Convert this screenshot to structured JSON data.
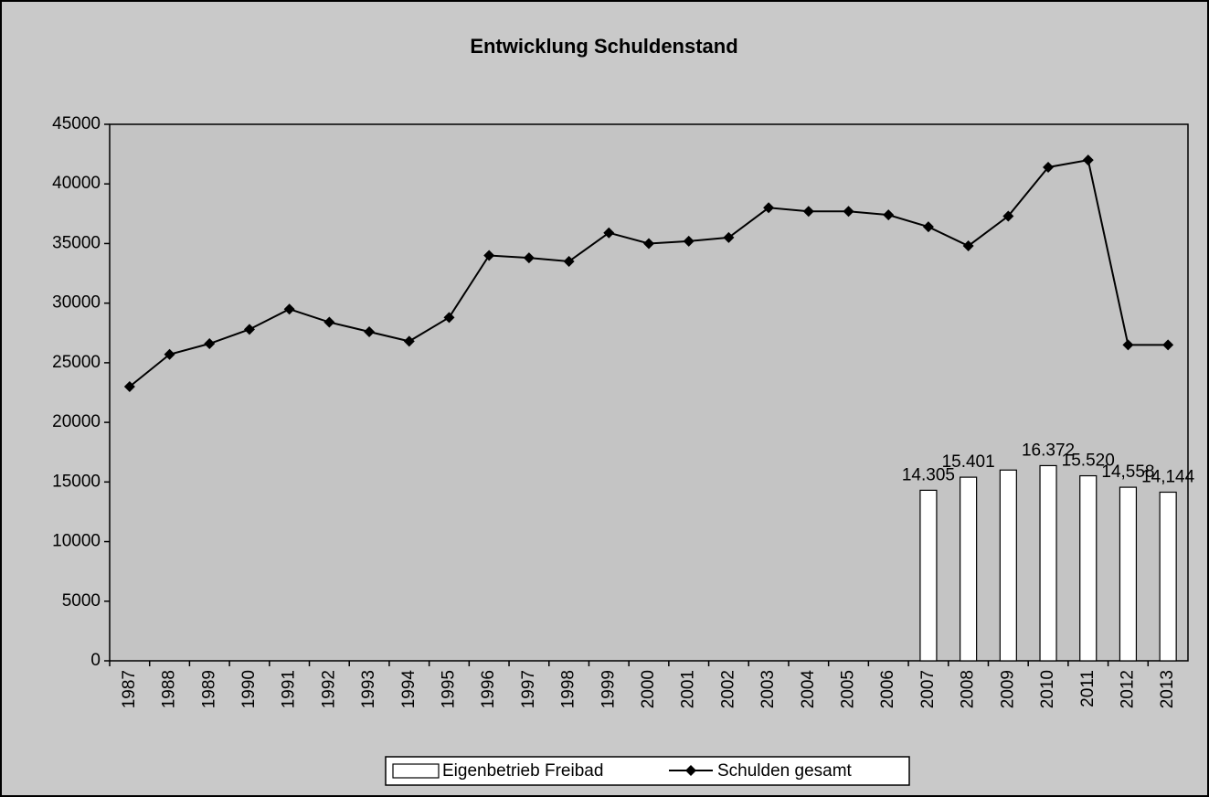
{
  "chart_data": {
    "type": "bar_line",
    "title": "Entwicklung Schuldenstand",
    "categories": [
      "1987",
      "1988",
      "1989",
      "1990",
      "1991",
      "1992",
      "1993",
      "1994",
      "1995",
      "1996",
      "1997",
      "1998",
      "1999",
      "2000",
      "2001",
      "2002",
      "2003",
      "2004",
      "2005",
      "2006",
      "2007",
      "2008",
      "2009",
      "2010",
      "2011",
      "2012",
      "2013"
    ],
    "series": [
      {
        "name": "Eigenbetrieb Freibad",
        "type": "bar",
        "color": "#ffffff",
        "values": [
          null,
          null,
          null,
          null,
          null,
          null,
          null,
          null,
          null,
          null,
          null,
          null,
          null,
          null,
          null,
          null,
          null,
          null,
          null,
          null,
          14305,
          15401,
          16000,
          16372,
          15520,
          14558,
          14144
        ],
        "value_labels": [
          null,
          null,
          null,
          null,
          null,
          null,
          null,
          null,
          null,
          null,
          null,
          null,
          null,
          null,
          null,
          null,
          null,
          null,
          null,
          null,
          "14.305",
          "15.401",
          null,
          "16.372",
          "15.520",
          "14,558",
          "14,144"
        ]
      },
      {
        "name": "Schulden gesamt",
        "type": "line",
        "color": "#000000",
        "values": [
          23000,
          25700,
          26600,
          27800,
          29500,
          28400,
          27600,
          26800,
          28800,
          34000,
          33800,
          33500,
          35900,
          35000,
          35200,
          35500,
          38000,
          37700,
          37700,
          37400,
          36400,
          34800,
          37300,
          41400,
          42000,
          26500,
          26500
        ]
      }
    ],
    "ylim": [
      0,
      45000
    ],
    "yticks": [
      0,
      5000,
      10000,
      15000,
      20000,
      25000,
      30000,
      35000,
      40000,
      45000
    ],
    "grid": false,
    "legend": "bottom"
  }
}
